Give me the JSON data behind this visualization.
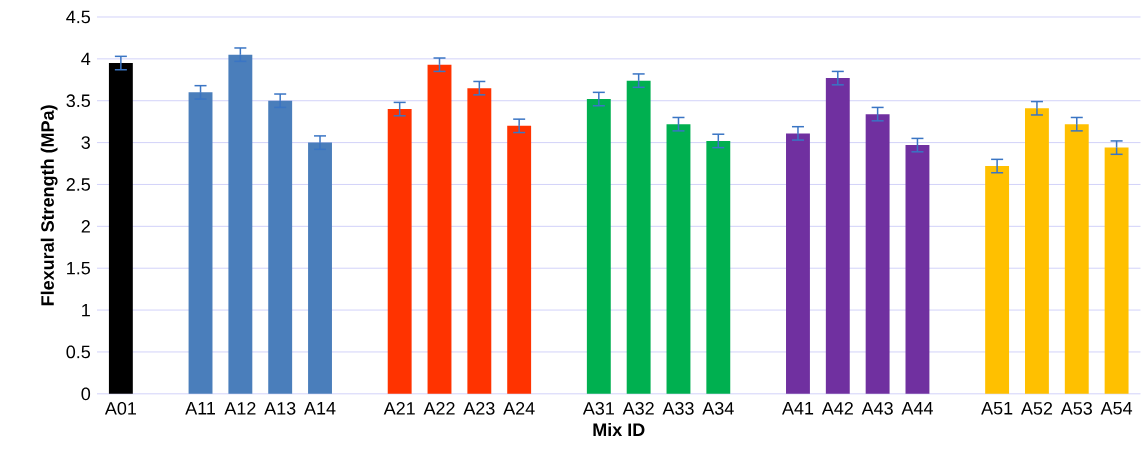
{
  "chart_data": {
    "type": "bar",
    "xlabel": "Mix ID",
    "ylabel": "Flexural Strength (MPa)",
    "categories": [
      "A01",
      null,
      "A11",
      "A12",
      "A13",
      "A14",
      null,
      "A21",
      "A22",
      "A23",
      "A24",
      null,
      "A31",
      "A32",
      "A33",
      "A34",
      null,
      "A41",
      "A42",
      "A43",
      "A44",
      null,
      "A51",
      "A52",
      "A53",
      "A54"
    ],
    "values": [
      3.95,
      null,
      3.6,
      4.05,
      3.5,
      3.0,
      null,
      3.4,
      3.93,
      3.65,
      3.2,
      null,
      3.52,
      3.74,
      3.22,
      3.02,
      null,
      3.11,
      3.77,
      3.34,
      2.97,
      null,
      2.72,
      3.41,
      3.22,
      2.94
    ],
    "errors": [
      0.08,
      null,
      0.08,
      0.08,
      0.08,
      0.08,
      null,
      0.08,
      0.08,
      0.08,
      0.08,
      null,
      0.08,
      0.08,
      0.08,
      0.08,
      null,
      0.08,
      0.08,
      0.08,
      0.08,
      null,
      0.08,
      0.08,
      0.08,
      0.08
    ],
    "colors": [
      "#000000",
      null,
      "#4a7ebb",
      "#4a7ebb",
      "#4a7ebb",
      "#4a7ebb",
      null,
      "#ff3300",
      "#ff3300",
      "#ff3300",
      "#ff3300",
      null,
      "#00b050",
      "#00b050",
      "#00b050",
      "#00b050",
      null,
      "#7030a0",
      "#7030a0",
      "#7030a0",
      "#7030a0",
      null,
      "#ffc000",
      "#ffc000",
      "#ffc000",
      "#ffc000"
    ],
    "ylim": [
      0,
      4.5
    ],
    "yticks": [
      0,
      0.5,
      1,
      1.5,
      2,
      2.5,
      3,
      3.5,
      4,
      4.5
    ],
    "grid": "y"
  }
}
